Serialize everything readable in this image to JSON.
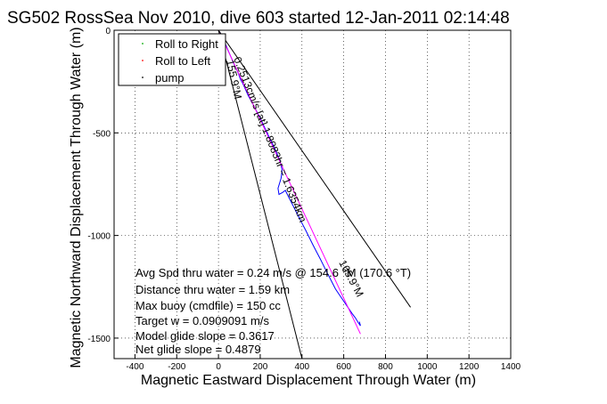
{
  "chart_data": {
    "type": "line",
    "title": "SG502 RossSea Nov 2010, dive 603 started 12-Jan-2011 02:14:48",
    "xlabel": "Magnetic Eastward Displacement Through Water (m)",
    "ylabel": "Magnetic Northward Displacement Through Water (m)",
    "xlim": [
      -500,
      1400
    ],
    "ylim": [
      -1600,
      0
    ],
    "xticks": [
      -400,
      -200,
      0,
      200,
      400,
      600,
      800,
      1000,
      1200,
      1400
    ],
    "yticks": [
      0,
      -500,
      -1000,
      -1500
    ],
    "grid": true,
    "legend": {
      "placement": "top-left",
      "entries": [
        {
          "label": "Roll to Right",
          "color": "#00aa00"
        },
        {
          "label": "Roll to Left",
          "color": "#ff0000"
        },
        {
          "label": "pump",
          "color": "#000000"
        }
      ]
    },
    "series": [
      {
        "color": "#0000ff",
        "x": [
          0,
          8,
          15,
          18,
          22,
          30,
          38,
          45,
          52,
          62,
          72,
          85,
          95,
          105,
          118,
          130,
          142,
          160,
          178,
          195,
          212,
          228,
          245,
          262,
          280,
          296,
          305,
          300,
          285,
          290,
          308,
          320,
          340,
          360,
          380,
          400,
          418,
          435,
          452,
          470,
          488,
          505,
          522,
          540,
          560,
          580,
          600,
          620,
          640,
          655,
          670,
          680,
          675
        ],
        "y": [
          -5,
          -12,
          -22,
          -35,
          -48,
          -62,
          -78,
          -95,
          -112,
          -135,
          -160,
          -185,
          -210,
          -238,
          -262,
          -290,
          -318,
          -350,
          -385,
          -420,
          -455,
          -490,
          -525,
          -560,
          -600,
          -640,
          -680,
          -720,
          -770,
          -800,
          -790,
          -780,
          -820,
          -860,
          -900,
          -940,
          -975,
          -1010,
          -1045,
          -1080,
          -1115,
          -1150,
          -1185,
          -1220,
          -1260,
          -1290,
          -1320,
          -1350,
          -1380,
          -1400,
          -1425,
          -1440,
          -1420
        ]
      },
      {
        "color": "#ff00ff",
        "x": [
          0,
          680
        ],
        "y": [
          0,
          -1480
        ]
      },
      {
        "color": "#000000",
        "x": [
          0,
          920
        ],
        "y": [
          0,
          -1350
        ]
      },
      {
        "color": "#000000",
        "x": [
          0,
          400
        ],
        "y": [
          0,
          -1600
        ]
      }
    ],
    "annotations": [
      "0.2513cm/s [at] 1.8083hr = 1.6354km",
      "155.9°M",
      "165.9°M"
    ],
    "notes": [
      "Avg Spd thru water = 0.24 m/s @ 154.6 °M (170.6 °T)",
      "Distance thru water = 1.59 km",
      "Max buoy (cmdfile) = 150 cc",
      "Target w = 0.0909091 m/s",
      "Model glide slope = 0.3617",
      "Net glide slope = 0.4879"
    ]
  }
}
